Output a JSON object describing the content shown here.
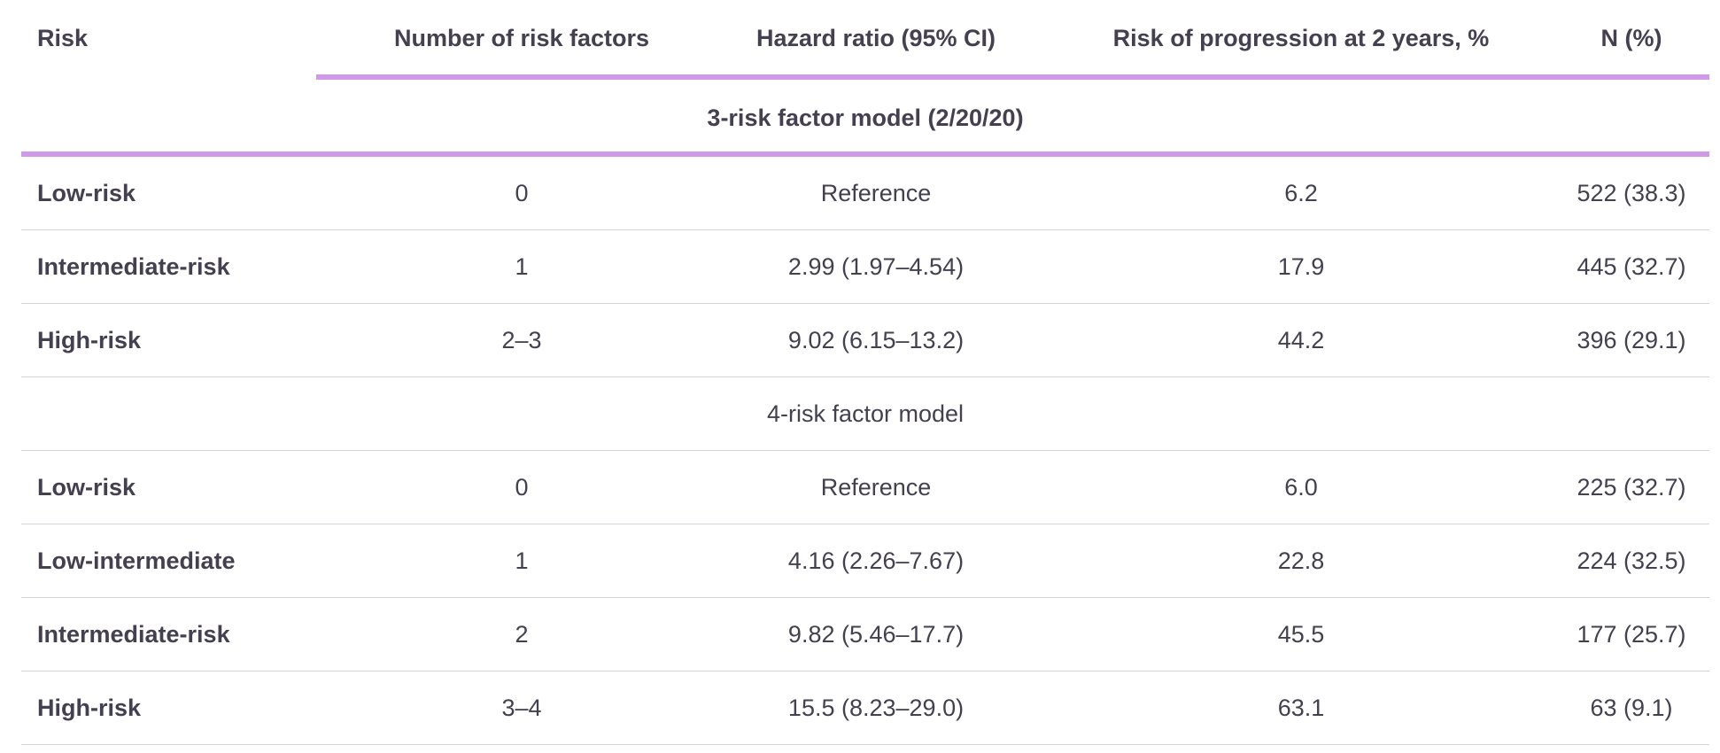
{
  "columns": {
    "risk": "Risk",
    "num_factors": "Number of risk factors",
    "hazard": "Hazard ratio (95% CI)",
    "progression": "Risk of progression at 2 years, %",
    "n": "N (%)"
  },
  "section1": {
    "title": "3-risk factor model (2/20/20)",
    "rows": [
      {
        "risk": "Low-risk",
        "num_factors": "0",
        "hazard": "Reference",
        "progression": "6.2",
        "n": "522 (38.3)"
      },
      {
        "risk": "Intermediate-risk",
        "num_factors": "1",
        "hazard": "2.99 (1.97–4.54)",
        "progression": "17.9",
        "n": "445 (32.7)"
      },
      {
        "risk": "High-risk",
        "num_factors": "2–3",
        "hazard": "9.02 (6.15–13.2)",
        "progression": "44.2",
        "n": "396 (29.1)"
      }
    ]
  },
  "section2": {
    "title": "4-risk factor  model",
    "rows": [
      {
        "risk": "Low-risk",
        "num_factors": "0",
        "hazard": "Reference",
        "progression": "6.0",
        "n": "225 (32.7)"
      },
      {
        "risk": "Low-intermediate",
        "num_factors": "1",
        "hazard": "4.16 (2.26–7.67)",
        "progression": "22.8",
        "n": "224 (32.5)"
      },
      {
        "risk": "Intermediate-risk",
        "num_factors": "2",
        "hazard": "9.82 (5.46–17.7)",
        "progression": "45.5",
        "n": "177 (25.7)"
      },
      {
        "risk": "High-risk",
        "num_factors": "3–4",
        "hazard": "15.5 (8.23–29.0)",
        "progression": "63.1",
        "n": "63 (9.1)"
      }
    ]
  },
  "colors": {
    "accent_rule": "#d19ae8",
    "row_rule": "#d4d2da",
    "text": "#44404f"
  }
}
